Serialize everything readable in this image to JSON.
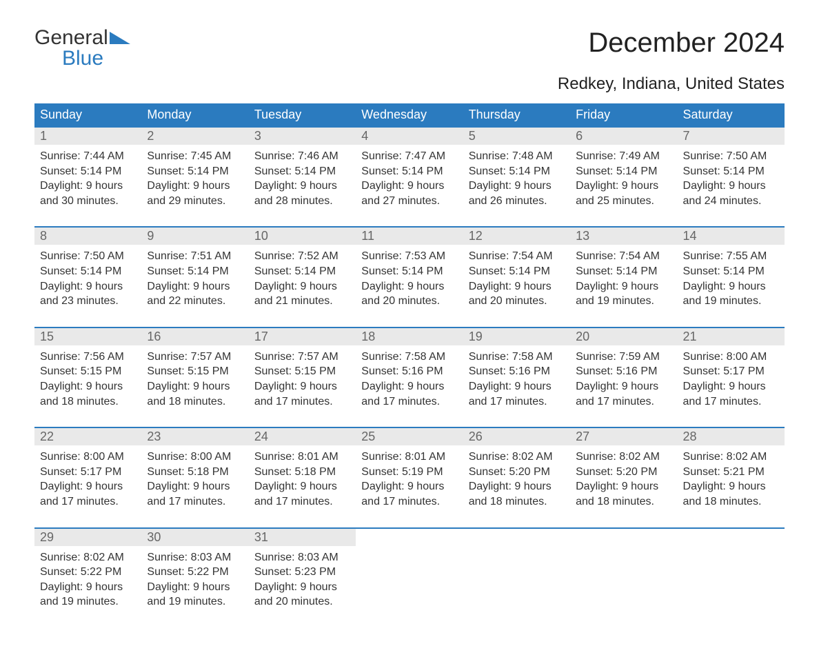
{
  "logo": {
    "line1": "General",
    "line2": "Blue",
    "accent_color": "#2b7bbf"
  },
  "title": "December 2024",
  "location": "Redkey, Indiana, United States",
  "colors": {
    "header_bg": "#2b7bbf",
    "header_text": "#ffffff",
    "daynum_bg": "#e9e9e9",
    "daynum_text": "#666666",
    "body_text": "#333333",
    "row_border": "#2b7bbf",
    "page_bg": "#ffffff"
  },
  "typography": {
    "title_fontsize": 40,
    "location_fontsize": 24,
    "header_fontsize": 18,
    "daynum_fontsize": 18,
    "cell_fontsize": 16
  },
  "day_headers": [
    "Sunday",
    "Monday",
    "Tuesday",
    "Wednesday",
    "Thursday",
    "Friday",
    "Saturday"
  ],
  "weeks": [
    [
      {
        "day": "1",
        "sunrise": "Sunrise: 7:44 AM",
        "sunset": "Sunset: 5:14 PM",
        "dl1": "Daylight: 9 hours",
        "dl2": "and 30 minutes."
      },
      {
        "day": "2",
        "sunrise": "Sunrise: 7:45 AM",
        "sunset": "Sunset: 5:14 PM",
        "dl1": "Daylight: 9 hours",
        "dl2": "and 29 minutes."
      },
      {
        "day": "3",
        "sunrise": "Sunrise: 7:46 AM",
        "sunset": "Sunset: 5:14 PM",
        "dl1": "Daylight: 9 hours",
        "dl2": "and 28 minutes."
      },
      {
        "day": "4",
        "sunrise": "Sunrise: 7:47 AM",
        "sunset": "Sunset: 5:14 PM",
        "dl1": "Daylight: 9 hours",
        "dl2": "and 27 minutes."
      },
      {
        "day": "5",
        "sunrise": "Sunrise: 7:48 AM",
        "sunset": "Sunset: 5:14 PM",
        "dl1": "Daylight: 9 hours",
        "dl2": "and 26 minutes."
      },
      {
        "day": "6",
        "sunrise": "Sunrise: 7:49 AM",
        "sunset": "Sunset: 5:14 PM",
        "dl1": "Daylight: 9 hours",
        "dl2": "and 25 minutes."
      },
      {
        "day": "7",
        "sunrise": "Sunrise: 7:50 AM",
        "sunset": "Sunset: 5:14 PM",
        "dl1": "Daylight: 9 hours",
        "dl2": "and 24 minutes."
      }
    ],
    [
      {
        "day": "8",
        "sunrise": "Sunrise: 7:50 AM",
        "sunset": "Sunset: 5:14 PM",
        "dl1": "Daylight: 9 hours",
        "dl2": "and 23 minutes."
      },
      {
        "day": "9",
        "sunrise": "Sunrise: 7:51 AM",
        "sunset": "Sunset: 5:14 PM",
        "dl1": "Daylight: 9 hours",
        "dl2": "and 22 minutes."
      },
      {
        "day": "10",
        "sunrise": "Sunrise: 7:52 AM",
        "sunset": "Sunset: 5:14 PM",
        "dl1": "Daylight: 9 hours",
        "dl2": "and 21 minutes."
      },
      {
        "day": "11",
        "sunrise": "Sunrise: 7:53 AM",
        "sunset": "Sunset: 5:14 PM",
        "dl1": "Daylight: 9 hours",
        "dl2": "and 20 minutes."
      },
      {
        "day": "12",
        "sunrise": "Sunrise: 7:54 AM",
        "sunset": "Sunset: 5:14 PM",
        "dl1": "Daylight: 9 hours",
        "dl2": "and 20 minutes."
      },
      {
        "day": "13",
        "sunrise": "Sunrise: 7:54 AM",
        "sunset": "Sunset: 5:14 PM",
        "dl1": "Daylight: 9 hours",
        "dl2": "and 19 minutes."
      },
      {
        "day": "14",
        "sunrise": "Sunrise: 7:55 AM",
        "sunset": "Sunset: 5:14 PM",
        "dl1": "Daylight: 9 hours",
        "dl2": "and 19 minutes."
      }
    ],
    [
      {
        "day": "15",
        "sunrise": "Sunrise: 7:56 AM",
        "sunset": "Sunset: 5:15 PM",
        "dl1": "Daylight: 9 hours",
        "dl2": "and 18 minutes."
      },
      {
        "day": "16",
        "sunrise": "Sunrise: 7:57 AM",
        "sunset": "Sunset: 5:15 PM",
        "dl1": "Daylight: 9 hours",
        "dl2": "and 18 minutes."
      },
      {
        "day": "17",
        "sunrise": "Sunrise: 7:57 AM",
        "sunset": "Sunset: 5:15 PM",
        "dl1": "Daylight: 9 hours",
        "dl2": "and 17 minutes."
      },
      {
        "day": "18",
        "sunrise": "Sunrise: 7:58 AM",
        "sunset": "Sunset: 5:16 PM",
        "dl1": "Daylight: 9 hours",
        "dl2": "and 17 minutes."
      },
      {
        "day": "19",
        "sunrise": "Sunrise: 7:58 AM",
        "sunset": "Sunset: 5:16 PM",
        "dl1": "Daylight: 9 hours",
        "dl2": "and 17 minutes."
      },
      {
        "day": "20",
        "sunrise": "Sunrise: 7:59 AM",
        "sunset": "Sunset: 5:16 PM",
        "dl1": "Daylight: 9 hours",
        "dl2": "and 17 minutes."
      },
      {
        "day": "21",
        "sunrise": "Sunrise: 8:00 AM",
        "sunset": "Sunset: 5:17 PM",
        "dl1": "Daylight: 9 hours",
        "dl2": "and 17 minutes."
      }
    ],
    [
      {
        "day": "22",
        "sunrise": "Sunrise: 8:00 AM",
        "sunset": "Sunset: 5:17 PM",
        "dl1": "Daylight: 9 hours",
        "dl2": "and 17 minutes."
      },
      {
        "day": "23",
        "sunrise": "Sunrise: 8:00 AM",
        "sunset": "Sunset: 5:18 PM",
        "dl1": "Daylight: 9 hours",
        "dl2": "and 17 minutes."
      },
      {
        "day": "24",
        "sunrise": "Sunrise: 8:01 AM",
        "sunset": "Sunset: 5:18 PM",
        "dl1": "Daylight: 9 hours",
        "dl2": "and 17 minutes."
      },
      {
        "day": "25",
        "sunrise": "Sunrise: 8:01 AM",
        "sunset": "Sunset: 5:19 PM",
        "dl1": "Daylight: 9 hours",
        "dl2": "and 17 minutes."
      },
      {
        "day": "26",
        "sunrise": "Sunrise: 8:02 AM",
        "sunset": "Sunset: 5:20 PM",
        "dl1": "Daylight: 9 hours",
        "dl2": "and 18 minutes."
      },
      {
        "day": "27",
        "sunrise": "Sunrise: 8:02 AM",
        "sunset": "Sunset: 5:20 PM",
        "dl1": "Daylight: 9 hours",
        "dl2": "and 18 minutes."
      },
      {
        "day": "28",
        "sunrise": "Sunrise: 8:02 AM",
        "sunset": "Sunset: 5:21 PM",
        "dl1": "Daylight: 9 hours",
        "dl2": "and 18 minutes."
      }
    ],
    [
      {
        "day": "29",
        "sunrise": "Sunrise: 8:02 AM",
        "sunset": "Sunset: 5:22 PM",
        "dl1": "Daylight: 9 hours",
        "dl2": "and 19 minutes."
      },
      {
        "day": "30",
        "sunrise": "Sunrise: 8:03 AM",
        "sunset": "Sunset: 5:22 PM",
        "dl1": "Daylight: 9 hours",
        "dl2": "and 19 minutes."
      },
      {
        "day": "31",
        "sunrise": "Sunrise: 8:03 AM",
        "sunset": "Sunset: 5:23 PM",
        "dl1": "Daylight: 9 hours",
        "dl2": "and 20 minutes."
      },
      null,
      null,
      null,
      null
    ]
  ]
}
